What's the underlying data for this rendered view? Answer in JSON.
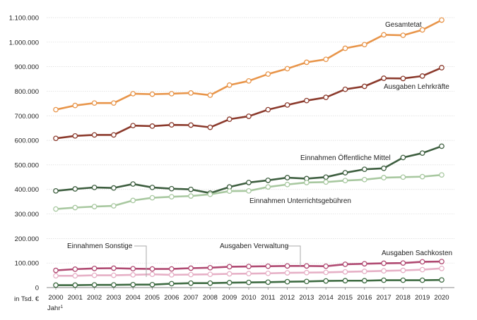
{
  "chart_data": {
    "type": "line",
    "x": [
      "2000",
      "2001",
      "2002",
      "2003",
      "2004",
      "2005",
      "2006",
      "2007",
      "2008",
      "2009",
      "2010",
      "2011",
      "2012",
      "2013",
      "2014",
      "2015",
      "2016",
      "2017",
      "2018",
      "2019",
      "2020"
    ],
    "ylim": [
      0,
      1100000
    ],
    "yticks": [
      "0",
      "100.000",
      "200.000",
      "300.000",
      "400.000",
      "500.000",
      "600.000",
      "700.000",
      "800.000",
      "900.000",
      "1.000.000",
      "1.100.000"
    ],
    "unit_label": "in Tsd. €",
    "year_label": "Jahr",
    "year_footnote": "1",
    "series": [
      {
        "name": "Gesamtetat",
        "color": "#e8954a",
        "values": [
          725000,
          742000,
          752000,
          752000,
          790000,
          788000,
          790000,
          793000,
          784000,
          825000,
          842000,
          870000,
          892000,
          918000,
          930000,
          975000,
          990000,
          1030000,
          1028000,
          1050000,
          1090000
        ]
      },
      {
        "name": "Ausgaben Lehrkräfte",
        "color": "#8b3a2c",
        "values": [
          608000,
          618000,
          622000,
          622000,
          660000,
          658000,
          663000,
          662000,
          653000,
          686000,
          698000,
          725000,
          744000,
          762000,
          775000,
          808000,
          820000,
          853000,
          852000,
          862000,
          896000
        ]
      },
      {
        "name": "Einnahmen Öffentliche Mittel",
        "color": "#3d5e3f",
        "values": [
          394000,
          402000,
          408000,
          406000,
          422000,
          408000,
          403000,
          400000,
          385000,
          410000,
          428000,
          437000,
          448000,
          444000,
          450000,
          468000,
          482000,
          486000,
          530000,
          548000,
          576000
        ]
      },
      {
        "name": "Einnahmen Unterrichtsgebühren",
        "color": "#a8c8a0",
        "values": [
          320000,
          326000,
          330000,
          333000,
          355000,
          366000,
          370000,
          373000,
          380000,
          393000,
          394000,
          410000,
          420000,
          428000,
          430000,
          436000,
          440000,
          448000,
          450000,
          452000,
          459000
        ]
      },
      {
        "name": "Ausgaben Sachkosten",
        "color": "#b04a72",
        "values": [
          70000,
          75000,
          78000,
          79000,
          77000,
          76000,
          76000,
          79000,
          81000,
          85000,
          86000,
          87000,
          88000,
          88000,
          87000,
          95000,
          97000,
          99000,
          100000,
          105000,
          106000
        ]
      },
      {
        "name": "Ausgaben Verwaltung",
        "color": "#e6b0c6",
        "values": [
          48000,
          48000,
          50000,
          50000,
          52000,
          54000,
          52000,
          53000,
          54000,
          56000,
          57000,
          58000,
          60000,
          61000,
          62000,
          64000,
          66000,
          68000,
          70000,
          73000,
          78000
        ]
      },
      {
        "name": "Einnahmen Sonstige",
        "color": "#3e6b42",
        "values": [
          10000,
          10000,
          11000,
          11000,
          12000,
          12000,
          16000,
          18000,
          18000,
          20000,
          21000,
          22000,
          24000,
          25000,
          27000,
          28000,
          28000,
          30000,
          30000,
          30000,
          31000
        ]
      }
    ]
  }
}
